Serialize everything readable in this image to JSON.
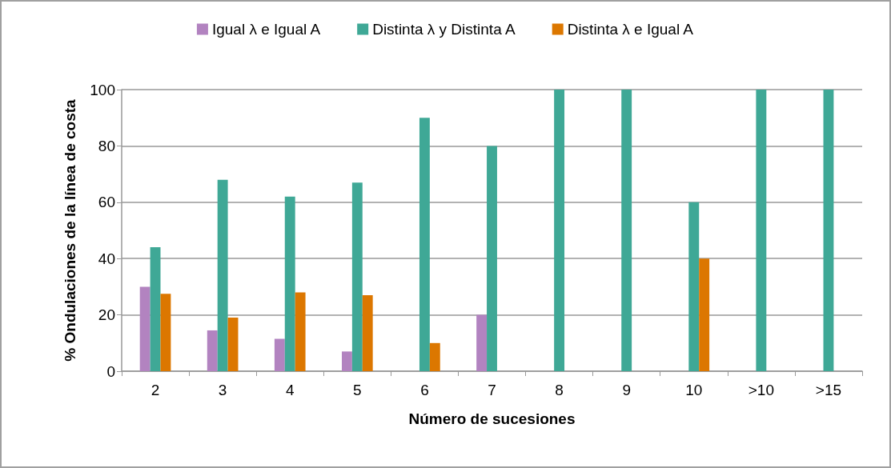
{
  "chart_data": {
    "type": "bar",
    "xlabel": "Número de sucesiones",
    "ylabel": "% Ondulaciones de la línea de costa",
    "categories": [
      "2",
      "3",
      "4",
      "5",
      "6",
      "7",
      "8",
      "9",
      "10",
      ">10",
      ">15"
    ],
    "series": [
      {
        "name": "Igual λ e Igual A",
        "color": "#b283c0",
        "values": [
          30,
          14.5,
          11.5,
          7,
          null,
          20,
          null,
          null,
          null,
          null,
          null
        ]
      },
      {
        "name": "Distinta λ y Distinta A",
        "color": "#3fa896",
        "values": [
          44,
          68,
          62,
          67,
          90,
          80,
          100,
          100,
          60,
          100,
          100
        ]
      },
      {
        "name": "Distinta λ e Igual A",
        "color": "#dc7700",
        "values": [
          27.5,
          19,
          28,
          27,
          10,
          null,
          null,
          null,
          40,
          null,
          null
        ]
      }
    ],
    "ylim": [
      0,
      100
    ],
    "yticks": [
      0,
      20,
      40,
      60,
      80,
      100
    ],
    "grid": "y",
    "legend": "top"
  }
}
